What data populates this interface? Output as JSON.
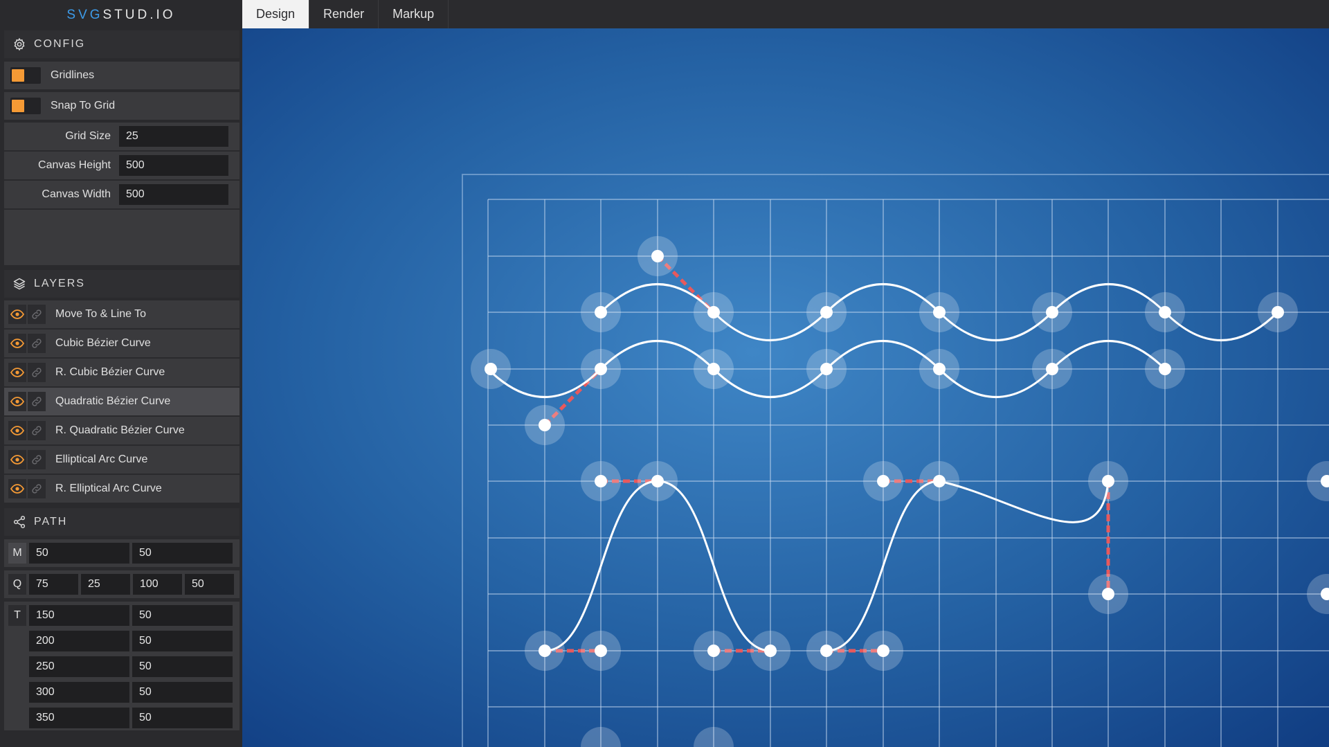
{
  "app": {
    "logo_accent": "SVG",
    "logo_main": "STUD",
    "logo_dot": ".",
    "logo_end": "IO"
  },
  "tabs": [
    {
      "label": "Design",
      "active": true
    },
    {
      "label": "Render",
      "active": false
    },
    {
      "label": "Markup",
      "active": false
    }
  ],
  "config": {
    "title": "CONFIG",
    "icon": "gear-icon",
    "gridlines_label": "Gridlines",
    "gridlines_on": true,
    "snap_label": "Snap To Grid",
    "snap_on": true,
    "grid_size_label": "Grid Size",
    "grid_size_value": "25",
    "canvas_height_label": "Canvas Height",
    "canvas_height_value": "500",
    "canvas_width_label": "Canvas Width",
    "canvas_width_value": "500"
  },
  "layers": {
    "title": "LAYERS",
    "icon": "layers-icon",
    "items": [
      {
        "name": "Move To & Line To",
        "selected": false
      },
      {
        "name": "Cubic Bézier Curve",
        "selected": false
      },
      {
        "name": "R. Cubic Bézier Curve",
        "selected": false
      },
      {
        "name": "Quadratic Bézier Curve",
        "selected": true
      },
      {
        "name": "R. Quadratic Bézier Curve",
        "selected": false
      },
      {
        "name": "Elliptical Arc Curve",
        "selected": false
      },
      {
        "name": "R. Elliptical Arc Curve",
        "selected": false
      }
    ]
  },
  "path": {
    "title": "PATH",
    "icon": "share-icon",
    "m": {
      "cmd": "M",
      "values": [
        "50",
        "50"
      ]
    },
    "q": {
      "cmd": "Q",
      "values": [
        "75",
        "25",
        "100",
        "50"
      ]
    },
    "t": {
      "cmd": "T",
      "rows": [
        [
          "150",
          "50"
        ],
        [
          "200",
          "50"
        ],
        [
          "250",
          "50"
        ],
        [
          "300",
          "50"
        ],
        [
          "350",
          "50"
        ]
      ]
    }
  },
  "colors": {
    "accent": "#f59a35",
    "logo_accent": "#3d9be9",
    "control_line": "#e8595c",
    "curve": "#ffffff"
  }
}
